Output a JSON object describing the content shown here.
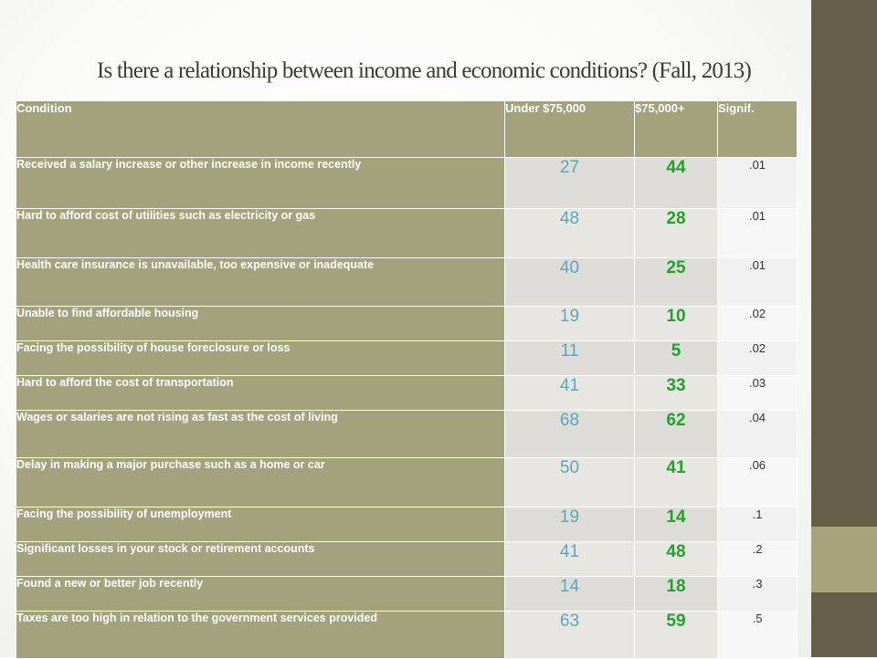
{
  "title": "Is there a relationship between income and economic conditions? (Fall, 2013)",
  "table": {
    "headers": [
      "Condition",
      "Under $75,000",
      "$75,000+",
      "Signif."
    ],
    "rows": [
      {
        "condition": "Received a salary increase or other increase in income recently",
        "under": "27",
        "over": "44",
        "signif": ".01"
      },
      {
        "condition": "Hard to afford cost of utilities such as electricity or gas",
        "under": "48",
        "over": "28",
        "signif": ".01"
      },
      {
        "condition": "Health care insurance is unavailable, too expensive or inadequate",
        "under": "40",
        "over": "25",
        "signif": ".01"
      },
      {
        "condition": "Unable to find affordable housing",
        "under": "19",
        "over": "10",
        "signif": ".02"
      },
      {
        "condition": "Facing the possibility of house foreclosure or loss",
        "under": "11",
        "over": "5",
        "signif": ".02"
      },
      {
        "condition": "Hard to afford the cost of transportation",
        "under": "41",
        "over": "33",
        "signif": ".03"
      },
      {
        "condition": "Wages or salaries are not rising as fast as the cost of living",
        "under": "68",
        "over": "62",
        "signif": ".04"
      },
      {
        "condition": "Delay in making a major purchase such as a home or car",
        "under": "50",
        "over": "41",
        "signif": ".06"
      },
      {
        "condition": "Facing the possibility of unemployment",
        "under": "19",
        "over": "14",
        "signif": ".1"
      },
      {
        "condition": "Significant losses in your stock or retirement accounts",
        "under": "41",
        "over": "48",
        "signif": ".2"
      },
      {
        "condition": "Found a new or better job recently",
        "under": "14",
        "over": "18",
        "signif": ".3"
      },
      {
        "condition": "Taxes are too high in relation to the government services provided",
        "under": "63",
        "over": "59",
        "signif": ".5"
      }
    ]
  },
  "colors": {
    "header_fill": "#a4a27c",
    "cell_fill": "#dedcd6",
    "under_text": "#5aa7bd",
    "over_text": "#1fa32c",
    "side_band": "#675e47",
    "side_accent": "#a6a27b"
  }
}
